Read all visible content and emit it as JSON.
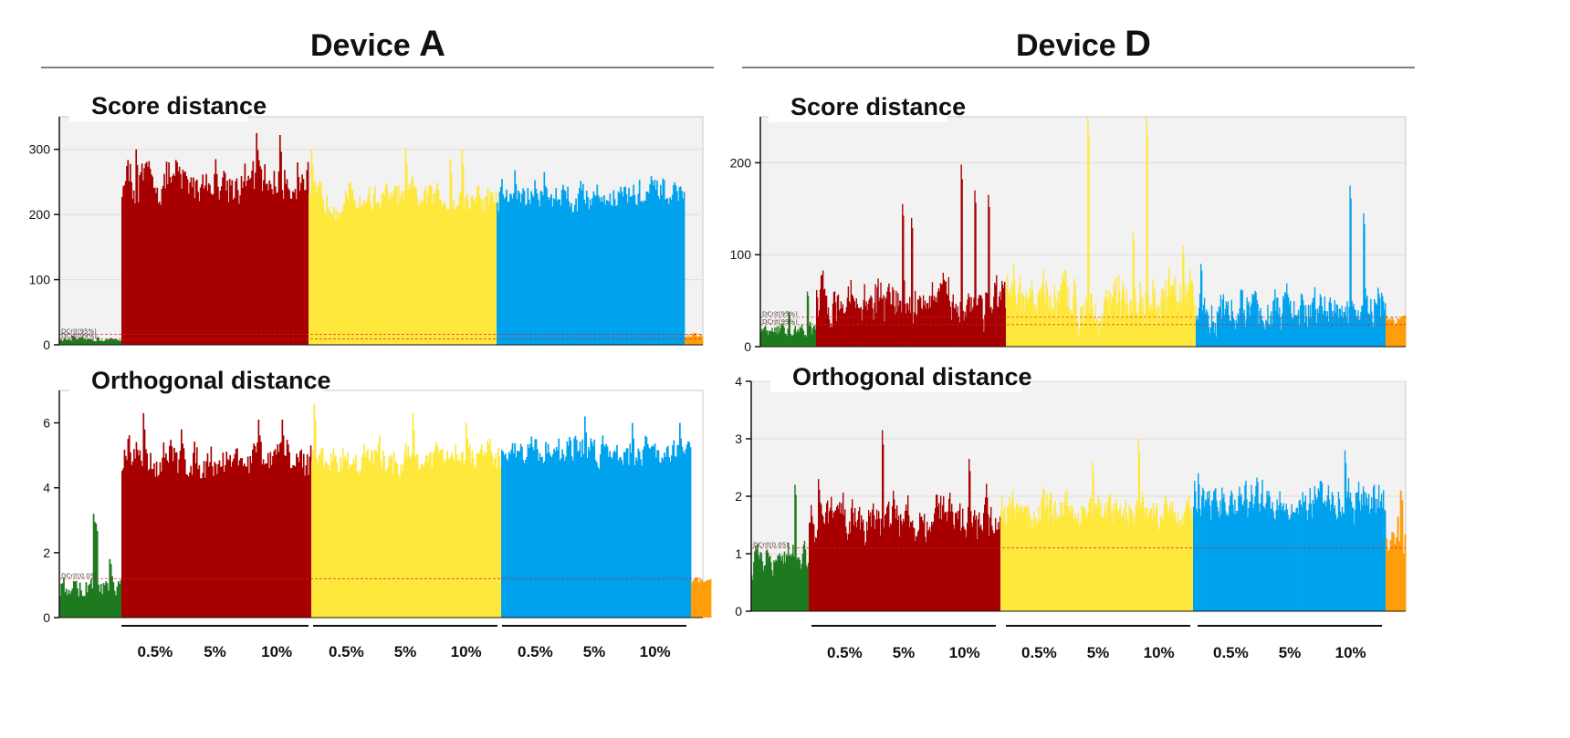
{
  "colors": {
    "green": "#1f7a1f",
    "red": "#a80000",
    "yellow": "#ffe83c",
    "blue": "#00a2ee",
    "orange": "#ff9d0a",
    "crit": "#d62020"
  },
  "devices": [
    {
      "title_prefix": "Device ",
      "title_letter": "A"
    },
    {
      "title_prefix": "Device ",
      "title_letter": "D"
    }
  ],
  "group_labels": [
    "0.5%",
    "5%",
    "10%"
  ],
  "chart_data": [
    {
      "type": "bar",
      "device": "A",
      "title": "Score distance",
      "ylim": [
        0,
        350
      ],
      "yticks": [
        0,
        100,
        200,
        300
      ],
      "grid": true,
      "crit_labels": [
        "DCrit(95%)",
        "DCrit(99%)"
      ],
      "crit_values": [
        16,
        9
      ],
      "segments": [
        {
          "color": "green",
          "count": 50,
          "base": 8,
          "spread": 4,
          "peaks": [
            [
              10,
              14
            ],
            [
              30,
              12
            ]
          ]
        },
        {
          "color": "red",
          "count": 160,
          "base": 250,
          "spread": 45,
          "peaks": [
            [
              12,
              300
            ],
            [
              40,
              280
            ],
            [
              80,
              285
            ],
            [
              115,
              325
            ],
            [
              135,
              322
            ],
            [
              150,
              280
            ]
          ]
        },
        {
          "color": "yellow",
          "count": 160,
          "base": 225,
          "spread": 35,
          "peaks": [
            [
              2,
              300
            ],
            [
              82,
              302
            ],
            [
              120,
              285
            ],
            [
              130,
              300
            ]
          ]
        },
        {
          "color": "blue",
          "count": 160,
          "base": 230,
          "spread": 35,
          "peaks": [
            [
              15,
              268
            ],
            [
              40,
              265
            ],
            [
              150,
              245
            ]
          ]
        },
        {
          "color": "orange",
          "count": 14,
          "base": 14,
          "spread": 5,
          "peaks": []
        }
      ]
    },
    {
      "type": "bar",
      "device": "A",
      "title": "Orthogonal distance",
      "ylim": [
        0,
        7
      ],
      "yticks": [
        0,
        2,
        4,
        6
      ],
      "grid": false,
      "crit_labels": [
        "DCrit(0.05)"
      ],
      "crit_values": [
        1.2
      ],
      "segments": [
        {
          "color": "green",
          "count": 50,
          "base": 0.9,
          "spread": 0.5,
          "peaks": [
            [
              27,
              3.2
            ],
            [
              29,
              2.9
            ],
            [
              40,
              1.8
            ]
          ]
        },
        {
          "color": "red",
          "count": 160,
          "base": 4.9,
          "spread": 0.8,
          "peaks": [
            [
              18,
              6.3
            ],
            [
              50,
              5.8
            ],
            [
              115,
              6.1
            ],
            [
              135,
              6.1
            ]
          ]
        },
        {
          "color": "yellow",
          "count": 160,
          "base": 4.9,
          "spread": 0.7,
          "peaks": [
            [
              2,
              6.6
            ],
            [
              85,
              6.3
            ],
            [
              130,
              6.0
            ]
          ]
        },
        {
          "color": "blue",
          "count": 160,
          "base": 5.2,
          "spread": 0.7,
          "peaks": [
            [
              70,
              6.2
            ],
            [
              110,
              6.0
            ],
            [
              150,
              6.0
            ]
          ]
        },
        {
          "color": "orange",
          "count": 14,
          "base": 1.1,
          "spread": 0.2,
          "peaks": []
        }
      ]
    },
    {
      "type": "bar",
      "device": "D",
      "title": "Score distance",
      "ylim": [
        0,
        250
      ],
      "yticks": [
        0,
        100,
        200
      ],
      "grid": true,
      "crit_labels": [
        "DCrit(95%)",
        "DCrit(99%)"
      ],
      "crit_values": [
        32,
        24
      ],
      "segments": [
        {
          "color": "green",
          "count": 60,
          "base": 18,
          "spread": 10,
          "peaks": [
            [
              50,
              60
            ],
            [
              30,
              38
            ]
          ]
        },
        {
          "color": "red",
          "count": 210,
          "base": 50,
          "spread": 35,
          "peaks": [
            [
              95,
              155
            ],
            [
              105,
              140
            ],
            [
              160,
              198
            ],
            [
              175,
              170
            ],
            [
              190,
              165
            ]
          ]
        },
        {
          "color": "yellow",
          "count": 210,
          "base": 50,
          "spread": 40,
          "peaks": [
            [
              90,
              250
            ],
            [
              155,
              250
            ],
            [
              140,
              125
            ],
            [
              195,
              110
            ]
          ]
        },
        {
          "color": "blue",
          "count": 210,
          "base": 40,
          "spread": 30,
          "peaks": [
            [
              170,
              175
            ],
            [
              185,
              145
            ],
            [
              5,
              90
            ]
          ]
        },
        {
          "color": "orange",
          "count": 14,
          "base": 30,
          "spread": 15,
          "peaks": []
        }
      ]
    },
    {
      "type": "bar",
      "device": "D",
      "title": "Orthogonal distance",
      "ylim": [
        0,
        4
      ],
      "yticks": [
        0,
        1,
        2,
        3,
        4
      ],
      "grid": true,
      "crit_labels": [
        "DCrit(0.05)"
      ],
      "crit_values": [
        1.1
      ],
      "segments": [
        {
          "color": "green",
          "count": 60,
          "base": 0.85,
          "spread": 0.45,
          "peaks": [
            [
              45,
              2.2
            ]
          ]
        },
        {
          "color": "red",
          "count": 210,
          "base": 1.65,
          "spread": 0.55,
          "peaks": [
            [
              80,
              3.15
            ],
            [
              175,
              2.65
            ],
            [
              10,
              2.3
            ]
          ]
        },
        {
          "color": "yellow",
          "count": 210,
          "base": 1.75,
          "spread": 0.45,
          "peaks": [
            [
              150,
              3.0
            ],
            [
              100,
              2.6
            ]
          ]
        },
        {
          "color": "blue",
          "count": 210,
          "base": 1.9,
          "spread": 0.5,
          "peaks": [
            [
              165,
              2.8
            ],
            [
              5,
              2.4
            ]
          ]
        },
        {
          "color": "orange",
          "count": 14,
          "base": 1.3,
          "spread": 0.6,
          "peaks": [
            [
              10,
              2.1
            ]
          ]
        }
      ]
    }
  ]
}
